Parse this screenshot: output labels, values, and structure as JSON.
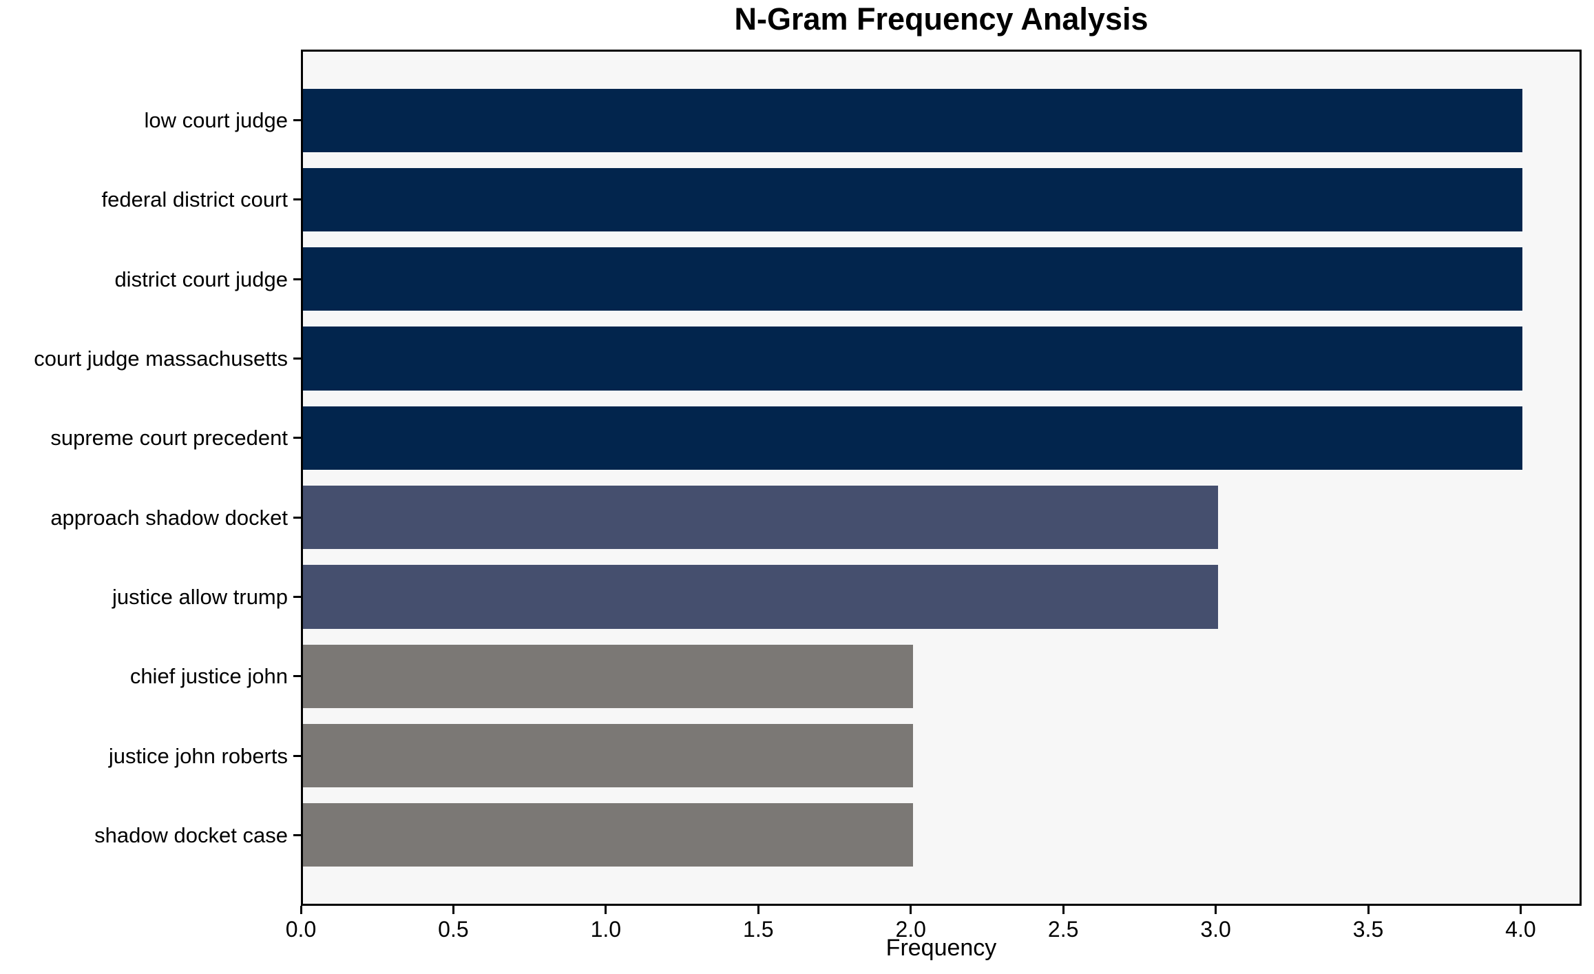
{
  "chart_data": {
    "type": "bar",
    "orientation": "horizontal",
    "title": "N-Gram Frequency Analysis",
    "xlabel": "Frequency",
    "ylabel": "",
    "categories": [
      "low court judge",
      "federal district court",
      "district court judge",
      "court judge massachusetts",
      "supreme court precedent",
      "approach shadow docket",
      "justice allow trump",
      "chief justice john",
      "justice john roberts",
      "shadow docket case"
    ],
    "values": [
      4,
      4,
      4,
      4,
      4,
      3,
      3,
      2,
      2,
      2
    ],
    "bar_colors": [
      "#02254D",
      "#02254D",
      "#02254D",
      "#02254D",
      "#02254D",
      "#454F6E",
      "#454F6E",
      "#7B7875",
      "#7B7875",
      "#7B7875"
    ],
    "xlim": [
      0,
      4.2
    ],
    "xticks": [
      0.0,
      0.5,
      1.0,
      1.5,
      2.0,
      2.5,
      3.0,
      3.5,
      4.0
    ],
    "xtick_labels": [
      "0.0",
      "0.5",
      "1.0",
      "1.5",
      "2.0",
      "2.5",
      "3.0",
      "3.5",
      "4.0"
    ],
    "grid": false,
    "legend": null,
    "colors": {
      "figure_background": "#FFFFFF",
      "plot_background": "#F7F7F7",
      "axis": "#000000",
      "text": "#000000"
    }
  }
}
